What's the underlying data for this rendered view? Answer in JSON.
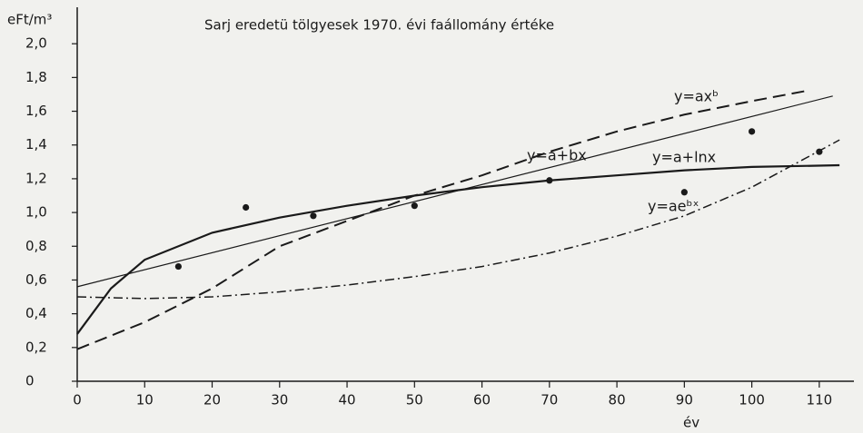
{
  "chart_data": {
    "type": "line",
    "title": "Sarj eredetü tölgyesek 1970. évi faállomány értéke",
    "y_label": "eFt/m³",
    "x_label": "év",
    "xlim": [
      0,
      115
    ],
    "xticks": [
      0,
      10,
      20,
      30,
      40,
      50,
      60,
      70,
      80,
      90,
      100,
      110
    ],
    "ylim": [
      0,
      2.2
    ],
    "yticks": [
      0,
      {
        "value": 0.2,
        "label": "0,2"
      },
      {
        "value": 0.4,
        "label": "0,4"
      },
      {
        "value": 0.6,
        "label": "0,6"
      },
      {
        "value": 0.8,
        "label": "0,8"
      },
      {
        "value": 1.0,
        "label": "1,0"
      },
      {
        "value": 1.2,
        "label": "1,2"
      },
      {
        "value": 1.4,
        "label": "1,4"
      },
      {
        "value": 1.6,
        "label": "1,6"
      },
      {
        "value": 1.8,
        "label": "1,8"
      },
      {
        "value": 2.0,
        "label": "2,0"
      }
    ],
    "color": "#1a1a1a",
    "points": {
      "x": [
        15,
        25,
        35,
        50,
        70,
        90,
        100,
        110
      ],
      "values": [
        0.68,
        1.03,
        0.98,
        1.04,
        1.19,
        1.12,
        1.48,
        1.36
      ]
    },
    "series": [
      {
        "name": "y=axᵇ",
        "style": "dashed",
        "x": [
          0,
          10,
          20,
          30,
          40,
          50,
          60,
          70,
          80,
          90,
          100,
          108
        ],
        "values": [
          0.19,
          0.35,
          0.55,
          0.8,
          0.95,
          1.1,
          1.22,
          1.36,
          1.48,
          1.58,
          1.66,
          1.72
        ]
      },
      {
        "name": "y=a+bx",
        "style": "thin",
        "x": [
          0,
          112
        ],
        "values": [
          0.56,
          1.69
        ]
      },
      {
        "name": "y=a+lnx",
        "style": "solid",
        "x": [
          0,
          5,
          10,
          20,
          30,
          40,
          50,
          60,
          70,
          80,
          90,
          100,
          113
        ],
        "values": [
          0.28,
          0.55,
          0.72,
          0.88,
          0.97,
          1.04,
          1.1,
          1.15,
          1.19,
          1.22,
          1.25,
          1.27,
          1.28
        ]
      },
      {
        "name": "y=aeᵇˣ",
        "style": "dashdot",
        "x": [
          0,
          10,
          20,
          30,
          40,
          50,
          60,
          70,
          80,
          90,
          100,
          113
        ],
        "values": [
          0.5,
          0.49,
          0.5,
          0.53,
          0.57,
          0.62,
          0.68,
          0.76,
          0.86,
          0.98,
          1.15,
          1.43
        ]
      }
    ]
  }
}
